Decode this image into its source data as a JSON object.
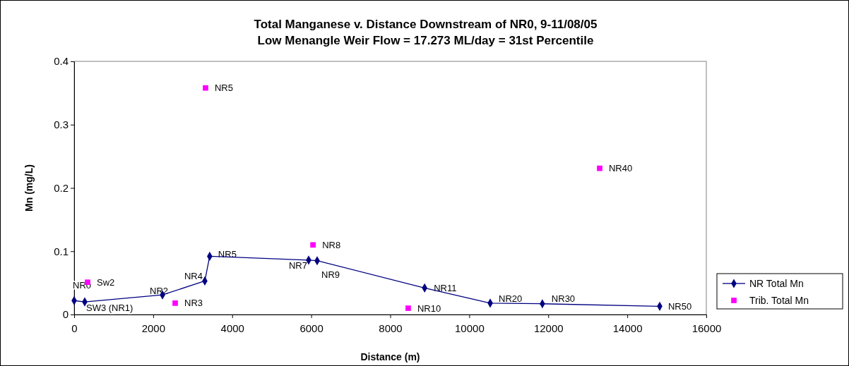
{
  "chart_data": {
    "type": "line",
    "title": "Total Manganese v. Distance Downstream of NR0, 9-11/08/05\nLow Menangle Weir Flow = 17.273 ML/day = 31st Percentile",
    "xlabel": "Distance (m)",
    "ylabel": "Mn (mg/L)",
    "xlim": [
      0,
      16000
    ],
    "xticks": [
      0,
      2000,
      4000,
      6000,
      8000,
      10000,
      12000,
      14000,
      16000
    ],
    "ylim": [
      0,
      0.4
    ],
    "yticks": [
      0,
      0.1,
      0.2,
      0.3,
      0.4
    ],
    "grid": false,
    "legend": "right",
    "series": [
      {
        "name": "NR Total Mn",
        "marker": "diamond",
        "color": "#000080",
        "x": [
          0,
          268,
          2235,
          3307,
          3430,
          5935,
          6150,
          8870,
          10530,
          11850,
          14820
        ],
        "values": [
          0.022,
          0.02,
          0.031,
          0.053,
          0.092,
          0.086,
          0.085,
          0.042,
          0.018,
          0.017,
          0.013
        ]
      },
      {
        "name": "Trib. Total Mn",
        "type": "scatter",
        "marker": "square",
        "color": "#ff00ff",
        "x": [
          340,
          2557,
          3325,
          6045,
          8455,
          13300
        ],
        "values": [
          0.051,
          0.018,
          0.358,
          0.11,
          0.01,
          0.231
        ]
      }
    ],
    "annotations": [
      {
        "text": "NR0",
        "x": 0,
        "y": 0.022
      },
      {
        "text": "SW3 (NR1)",
        "x": 268,
        "y": 0.02
      },
      {
        "text": "NR2",
        "x": 2235,
        "y": 0.031
      },
      {
        "text": "NR4",
        "x": 3307,
        "y": 0.053
      },
      {
        "text": "NR5",
        "x": 3430,
        "y": 0.092
      },
      {
        "text": "NR7",
        "x": 5935,
        "y": 0.086
      },
      {
        "text": "NR9",
        "x": 6150,
        "y": 0.085
      },
      {
        "text": "NR11",
        "x": 8870,
        "y": 0.042
      },
      {
        "text": "NR20",
        "x": 10530,
        "y": 0.018
      },
      {
        "text": "NR30",
        "x": 11850,
        "y": 0.017
      },
      {
        "text": "NR50",
        "x": 14820,
        "y": 0.013
      },
      {
        "text": "Sw2",
        "x": 340,
        "y": 0.051
      },
      {
        "text": "NR3",
        "x": 2557,
        "y": 0.018
      },
      {
        "text": "NR5",
        "x": 3325,
        "y": 0.358
      },
      {
        "text": "NR8",
        "x": 6045,
        "y": 0.11
      },
      {
        "text": "NR10",
        "x": 8455,
        "y": 0.01
      },
      {
        "text": "NR40",
        "x": 13300,
        "y": 0.231
      }
    ]
  }
}
